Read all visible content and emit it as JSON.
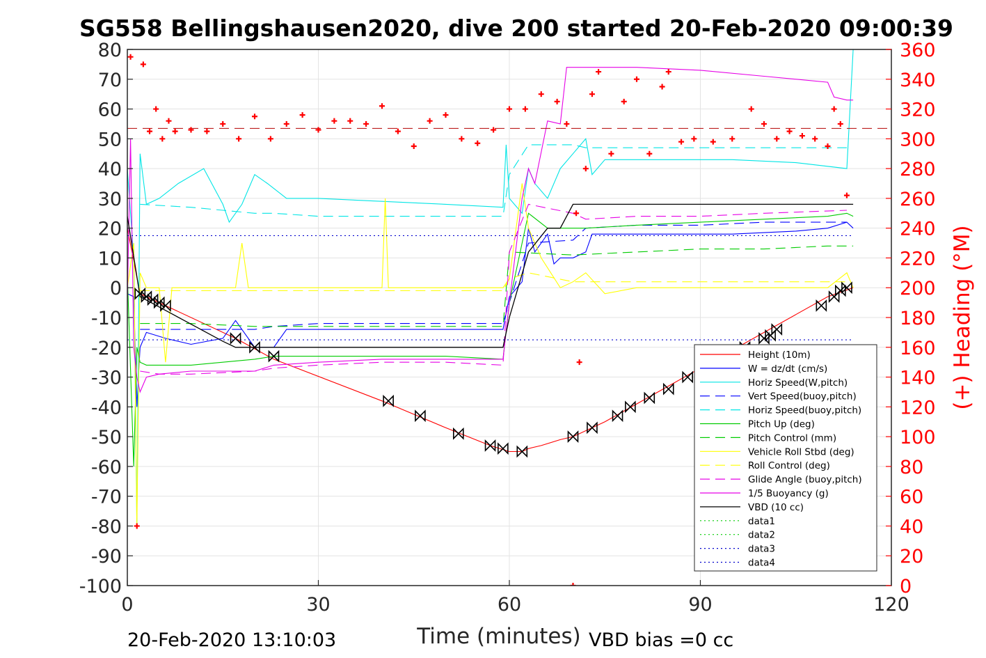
{
  "chart_data": {
    "type": "line",
    "title": "SG558 Bellingshausen2020, dive 200 started 20-Feb-2020 09:00:39",
    "xlabel": "Time (minutes)",
    "ylabel": "",
    "y2label": "(+) Heading (°M)",
    "xlim": [
      0,
      120
    ],
    "ylim": [
      -100,
      80
    ],
    "y2lim": [
      0,
      360
    ],
    "xticks": [
      "0",
      "30",
      "60",
      "90",
      "120"
    ],
    "yticks": [
      "80",
      "70",
      "60",
      "50",
      "40",
      "30",
      "20",
      "10",
      "0",
      "-10",
      "-20",
      "-30",
      "-40",
      "-50",
      "-60",
      "-70",
      "-80",
      "-90",
      "-100"
    ],
    "y2ticks": [
      "360",
      "340",
      "320",
      "300",
      "280",
      "260",
      "240",
      "220",
      "200",
      "180",
      "160",
      "140",
      "120",
      "100",
      "80",
      "60",
      "40",
      "20",
      "0"
    ],
    "grid": true,
    "legend_position": "bottom-right",
    "footer_left": "20-Feb-2020 13:10:03",
    "footer_right": "VBD bias =0 cc",
    "series": [
      {
        "name": "Height (10m)",
        "color": "#ff0000",
        "style": "solid",
        "x": [
          0,
          2,
          6,
          17,
          23,
          40,
          50,
          57,
          60,
          62,
          63,
          65,
          68,
          70,
          75,
          80,
          85,
          90,
          95,
          100,
          105,
          110,
          114
        ],
        "y": [
          20,
          -2,
          -6,
          -17,
          -24,
          -38,
          -47,
          -53,
          -55,
          -55,
          -54,
          -53,
          -51,
          -50,
          -45,
          -39,
          -33,
          -27,
          -21,
          -15,
          -9,
          -3,
          0
        ]
      },
      {
        "name": "W = dz/dt (cm/s)",
        "color": "#0000ff",
        "style": "solid",
        "x": [
          0,
          1,
          1.5,
          2,
          3,
          6,
          10,
          15,
          17,
          20,
          23,
          25,
          35,
          45,
          59,
          60,
          62,
          63,
          64,
          66,
          67,
          68,
          70,
          72,
          73,
          75,
          85,
          95,
          105,
          110,
          113,
          114
        ],
        "y": [
          -2,
          -3,
          -40,
          -20,
          -15,
          -17,
          -19,
          -17,
          -11,
          -20,
          -20,
          -14,
          -14,
          -14,
          -14,
          -3,
          2,
          20,
          12,
          18,
          8,
          10,
          10,
          12,
          18,
          18,
          18,
          18,
          19,
          20,
          22,
          20
        ]
      },
      {
        "name": "Horiz Speed(W,pitch)",
        "color": "#00e5e5",
        "style": "solid",
        "x": [
          0,
          1,
          1.5,
          2,
          3,
          5,
          8,
          12,
          15,
          16,
          18,
          20,
          22,
          25,
          30,
          40,
          50,
          59,
          59.5,
          60,
          62,
          63,
          64,
          66,
          68,
          70,
          72,
          73,
          75,
          85,
          95,
          105,
          113,
          114
        ],
        "y": [
          40,
          10,
          -80,
          45,
          28,
          30,
          35,
          40,
          28,
          22,
          28,
          38,
          35,
          30,
          30,
          29,
          28,
          27,
          48,
          30,
          25,
          40,
          35,
          30,
          40,
          45,
          50,
          38,
          43,
          43,
          43,
          42,
          40,
          80
        ]
      },
      {
        "name": "Vert Speed(buoy,pitch)",
        "color": "#0000ff",
        "style": "dashed",
        "x": [
          2,
          10,
          20,
          23,
          30,
          40,
          50,
          59,
          60,
          63,
          70,
          72,
          80,
          90,
          100,
          113
        ],
        "y": [
          -14,
          -14,
          -14,
          -13,
          -12,
          -12,
          -12,
          -12,
          -5,
          15,
          16,
          20,
          21,
          21,
          22,
          22
        ]
      },
      {
        "name": "Horiz Speed(buoy,pitch)",
        "color": "#00e5e5",
        "style": "dashed",
        "x": [
          2,
          10,
          15,
          20,
          23,
          30,
          40,
          50,
          59,
          60,
          63,
          70,
          72,
          80,
          90,
          100,
          113
        ],
        "y": [
          28,
          27,
          26,
          25,
          25,
          24,
          24,
          24,
          24,
          38,
          48,
          48,
          47,
          47,
          47,
          47,
          47
        ]
      },
      {
        "name": "Pitch Up (deg)",
        "color": "#00cc00",
        "style": "solid",
        "x": [
          0,
          1,
          1.5,
          2,
          3,
          10,
          20,
          23,
          30,
          40,
          50,
          59,
          60,
          62,
          63,
          66,
          70,
          72,
          80,
          90,
          100,
          110,
          113,
          114
        ],
        "y": [
          5,
          -60,
          -20,
          -25,
          -26,
          -26,
          -24,
          -23,
          -23,
          -23,
          -23,
          -24,
          -5,
          15,
          25,
          20,
          20,
          20,
          21,
          22,
          23,
          24,
          25,
          24
        ]
      },
      {
        "name": "Pitch Control (mm)",
        "color": "#00cc00",
        "style": "dashed",
        "x": [
          2,
          10,
          20,
          30,
          40,
          50,
          59,
          60,
          70,
          80,
          90,
          100,
          110,
          114
        ],
        "y": [
          -12,
          -12,
          -13,
          -13,
          -13,
          -13,
          -13,
          12,
          11,
          12,
          13,
          13,
          14,
          14
        ]
      },
      {
        "name": "Vehicle Roll Stbd (deg)",
        "color": "#ffff00",
        "style": "solid",
        "x": [
          0,
          1,
          1.5,
          2,
          3,
          5,
          6,
          7,
          10,
          17,
          18,
          19,
          20,
          25,
          30,
          40,
          40.5,
          41,
          42,
          50,
          59,
          60,
          62,
          63,
          65,
          68,
          70,
          72,
          75,
          80,
          85,
          90,
          100,
          110,
          113,
          114
        ],
        "y": [
          0,
          15,
          -80,
          5,
          0,
          0,
          -25,
          0,
          0,
          0,
          15,
          0,
          0,
          0,
          0,
          0,
          30,
          0,
          0,
          0,
          0,
          3,
          35,
          20,
          10,
          0,
          2,
          5,
          -2,
          0,
          0,
          0,
          0,
          0,
          5,
          0
        ]
      },
      {
        "name": "Roll Control (deg)",
        "color": "#ffff00",
        "style": "dashed",
        "x": [
          2,
          10,
          20,
          30,
          40,
          50,
          59,
          60,
          63,
          70,
          80,
          90,
          100,
          113
        ],
        "y": [
          -1,
          -1,
          -1,
          -1,
          -1,
          -1,
          -1,
          3,
          5,
          2,
          2,
          2,
          2,
          2
        ]
      },
      {
        "name": "Glide Angle (buoy,pitch)",
        "color": "#e600e6",
        "style": "dashed",
        "x": [
          2,
          5,
          10,
          20,
          23,
          30,
          40,
          50,
          59,
          60,
          63,
          70,
          72,
          80,
          90,
          100,
          113
        ],
        "y": [
          -28,
          -29,
          -29,
          -28,
          -27,
          -26,
          -25,
          -25,
          -26,
          12,
          28,
          25,
          23,
          24,
          24,
          25,
          26
        ]
      },
      {
        "name": "1/5 Buoyancy (g)",
        "color": "#e600e6",
        "style": "solid",
        "x": [
          0,
          0.5,
          1,
          1.5,
          2,
          3,
          5,
          10,
          20,
          23,
          30,
          40,
          50,
          59,
          60,
          62,
          63,
          64,
          66,
          68,
          69,
          70,
          72,
          80,
          90,
          100,
          110,
          111,
          113,
          114
        ],
        "y": [
          -5,
          50,
          -20,
          -30,
          -35,
          -30,
          -29,
          -28,
          -28,
          -26,
          -25,
          -24,
          -24,
          -24,
          -5,
          30,
          40,
          35,
          56,
          55,
          74,
          74,
          74,
          74,
          73,
          71,
          69,
          64,
          63,
          63
        ]
      },
      {
        "name": "VBD (10 cc)",
        "color": "#000000",
        "style": "solid",
        "x": [
          0,
          2,
          15,
          17,
          20,
          59,
          60,
          63,
          66,
          68,
          70,
          72,
          114
        ],
        "y": [
          24,
          -3,
          -18,
          -20,
          -20,
          -20,
          -10,
          12,
          20,
          20,
          28,
          28,
          28
        ]
      },
      {
        "name": "data1",
        "color": "#00cc00",
        "style": "dotted",
        "x": [],
        "y": []
      },
      {
        "name": "data2",
        "color": "#00cc00",
        "style": "dotted",
        "x": [],
        "y": []
      },
      {
        "name": "data3",
        "color": "#0000cc",
        "style": "dotted",
        "x": [
          0,
          114
        ],
        "y": [
          17.5,
          17.5
        ]
      },
      {
        "name": "data4",
        "color": "#0000cc",
        "style": "dotted",
        "x": [
          0,
          114
        ],
        "y": [
          -17.5,
          -17.5
        ]
      }
    ],
    "heading": {
      "axis": "right",
      "color": "#ff0000",
      "marker": "+",
      "mean": 307,
      "x": [
        0.5,
        1.5,
        2.5,
        3.5,
        4.5,
        5.5,
        6.5,
        7.5,
        10,
        12.5,
        15,
        17.5,
        20,
        22.5,
        25,
        27.5,
        30,
        32.5,
        35,
        37.5,
        40,
        42.5,
        45,
        47.5,
        50,
        52.5,
        55,
        57.5,
        60,
        62.5,
        65,
        67.5,
        69,
        70,
        70.5,
        71,
        72,
        73,
        74,
        76,
        78,
        80,
        82,
        84,
        85,
        87,
        89,
        92,
        95,
        98,
        100,
        102,
        104,
        106,
        108,
        110,
        111,
        112,
        113
      ],
      "y": [
        355,
        40,
        350,
        305,
        320,
        300,
        312,
        305,
        306,
        305,
        310,
        300,
        315,
        300,
        310,
        316,
        306,
        312,
        312,
        310,
        322,
        305,
        295,
        312,
        316,
        300,
        297,
        306,
        320,
        320,
        330,
        325,
        310,
        0,
        250,
        150,
        280,
        330,
        345,
        290,
        325,
        340,
        290,
        335,
        345,
        298,
        300,
        298,
        300,
        320,
        310,
        300,
        305,
        302,
        300,
        295,
        320,
        310,
        262
      ]
    },
    "markers": {
      "shape": "bowtie",
      "color": "#000000",
      "x": [
        2,
        3,
        4,
        5,
        6,
        17,
        20,
        23,
        41,
        46,
        52,
        57,
        59,
        62,
        70,
        73,
        77,
        79,
        82,
        85,
        88,
        97,
        100,
        101,
        102,
        109,
        111,
        112,
        113
      ],
      "y": [
        -2,
        -3,
        -4,
        -5,
        -6,
        -17,
        -20,
        -23,
        -38,
        -43,
        -49,
        -53,
        -54,
        -55,
        -50,
        -47,
        -43,
        -40,
        -37,
        -34,
        -30,
        -20,
        -17,
        -16,
        -14,
        -6,
        -3,
        -1,
        0
      ]
    }
  }
}
